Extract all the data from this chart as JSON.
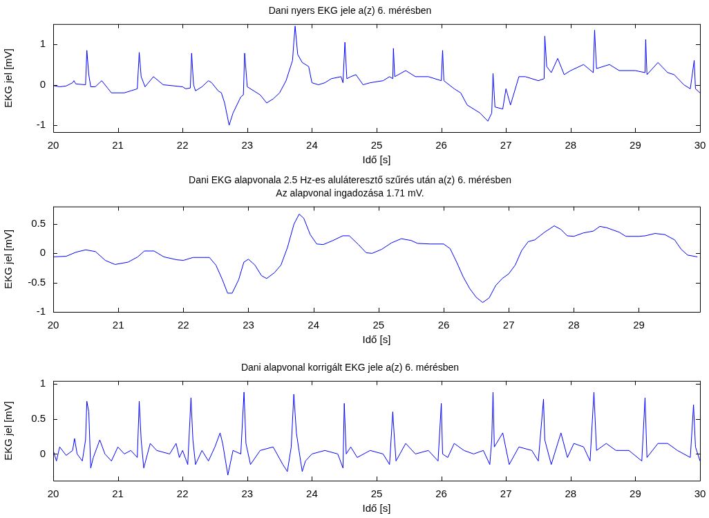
{
  "chart_data": [
    {
      "type": "line",
      "title": "Dani nyers EKG jele a(z) 6. mérésben",
      "xlabel": "Idő [s]",
      "ylabel": "EKG jel [mV]",
      "marker": "none",
      "xlim": [
        20,
        30
      ],
      "ylim": [
        -1.17,
        1.5
      ],
      "xticks": [
        20,
        21,
        22,
        23,
        24,
        25,
        26,
        27,
        28,
        29,
        30
      ],
      "yticks": [
        -1,
        0,
        1
      ],
      "series": [
        {
          "color": "#0000ff",
          "x": [
            20.0,
            20.1,
            20.2,
            20.3,
            20.32,
            20.35,
            20.5,
            20.52,
            20.55,
            20.58,
            20.65,
            20.75,
            20.85,
            20.9,
            21.1,
            21.2,
            21.3,
            21.33,
            21.36,
            21.42,
            21.55,
            21.7,
            22.0,
            22.05,
            22.12,
            22.14,
            22.17,
            22.2,
            22.3,
            22.4,
            22.45,
            22.55,
            22.6,
            22.65,
            22.72,
            22.78,
            22.9,
            22.94,
            22.96,
            23.0,
            23.2,
            23.3,
            23.4,
            23.5,
            23.6,
            23.65,
            23.7,
            23.72,
            23.74,
            23.78,
            23.85,
            23.95,
            24.0,
            24.1,
            24.2,
            24.3,
            24.45,
            24.48,
            24.51,
            24.54,
            24.6,
            24.68,
            24.79,
            24.9,
            25.1,
            25.2,
            25.25,
            25.26,
            25.28,
            25.45,
            25.6,
            25.8,
            26.0,
            26.02,
            26.04,
            26.2,
            26.3,
            26.4,
            26.6,
            26.72,
            26.78,
            26.8,
            26.83,
            26.95,
            27.0,
            27.07,
            27.2,
            27.3,
            27.5,
            27.59,
            27.6,
            27.63,
            27.7,
            27.8,
            27.9,
            28.0,
            28.2,
            28.35,
            28.37,
            28.4,
            28.6,
            28.75,
            29.0,
            29.15,
            29.16,
            29.18,
            29.35,
            29.5,
            29.6,
            29.75,
            29.85,
            29.91,
            29.93,
            30.0
          ],
          "values": [
            -0.02,
            -0.05,
            -0.03,
            0.05,
            0.1,
            0.02,
            0.0,
            0.85,
            0.25,
            -0.05,
            -0.05,
            0.1,
            -0.1,
            -0.2,
            -0.2,
            -0.15,
            -0.1,
            0.8,
            0.2,
            -0.05,
            0.2,
            0.0,
            -0.05,
            -0.1,
            -0.08,
            0.78,
            0.0,
            -0.15,
            -0.05,
            0.1,
            0.05,
            -0.15,
            -0.2,
            -0.45,
            -1.0,
            -0.7,
            -0.3,
            -0.25,
            0.78,
            -0.05,
            -0.25,
            -0.45,
            -0.35,
            -0.2,
            0.1,
            0.35,
            0.6,
            1.05,
            1.45,
            0.75,
            0.55,
            0.45,
            0.05,
            0.0,
            0.05,
            0.15,
            0.2,
            0.05,
            1.05,
            0.15,
            0.2,
            0.25,
            0.0,
            0.05,
            0.1,
            0.2,
            0.15,
            0.9,
            0.2,
            0.35,
            0.2,
            0.2,
            0.1,
            0.85,
            0.1,
            -0.1,
            -0.2,
            -0.5,
            -0.7,
            -0.9,
            -0.7,
            0.28,
            -0.55,
            -0.6,
            -0.1,
            -0.5,
            0.2,
            0.2,
            0.1,
            0.15,
            1.2,
            0.45,
            0.3,
            0.65,
            0.25,
            0.35,
            0.5,
            0.3,
            1.35,
            0.4,
            0.5,
            0.35,
            0.35,
            0.3,
            1.12,
            0.25,
            0.55,
            0.3,
            0.25,
            0.0,
            -0.1,
            0.6,
            -0.1,
            -0.2
          ]
        }
      ]
    },
    {
      "type": "line",
      "title": "Dani EKG alapvonala 2.5 Hz-es aluláteresztő szűrés után a(z) 6. mérésben",
      "subtitle": "Az alapvonal ingadozása 1.71 mV.",
      "xlabel": "Idő [s]",
      "ylabel": "EKG jel [mV]",
      "marker": "none",
      "xlim": [
        20,
        29.94
      ],
      "ylim": [
        -1,
        0.8
      ],
      "xticks": [
        20,
        21,
        22,
        23,
        24,
        25,
        26,
        27,
        28,
        29
      ],
      "yticks": [
        -1,
        -0.5,
        0,
        0.5
      ],
      "series": [
        {
          "color": "#0000ff",
          "x": [
            20.0,
            20.2,
            20.35,
            20.5,
            20.65,
            20.8,
            20.95,
            21.15,
            21.3,
            21.4,
            21.55,
            21.7,
            21.9,
            22.0,
            22.15,
            22.4,
            22.5,
            22.6,
            22.68,
            22.75,
            22.85,
            22.93,
            23.0,
            23.1,
            23.2,
            23.28,
            23.4,
            23.5,
            23.6,
            23.7,
            23.78,
            23.85,
            23.95,
            24.05,
            24.15,
            24.3,
            24.45,
            24.55,
            24.69,
            24.81,
            24.9,
            25.05,
            25.2,
            25.35,
            25.5,
            25.6,
            25.8,
            26.0,
            26.1,
            26.2,
            26.3,
            26.4,
            26.5,
            26.6,
            26.7,
            26.8,
            26.9,
            27.0,
            27.1,
            27.2,
            27.3,
            27.4,
            27.55,
            27.7,
            27.8,
            27.9,
            28.0,
            28.15,
            28.3,
            28.4,
            28.5,
            28.7,
            28.8,
            29.0,
            29.1,
            29.25,
            29.4,
            29.55,
            29.65,
            29.75,
            29.9
          ],
          "values": [
            -0.06,
            -0.05,
            0.02,
            0.06,
            0.03,
            -0.12,
            -0.19,
            -0.15,
            -0.06,
            0.04,
            0.04,
            -0.06,
            -0.11,
            -0.12,
            -0.07,
            -0.07,
            -0.2,
            -0.45,
            -0.68,
            -0.68,
            -0.45,
            -0.15,
            -0.1,
            -0.2,
            -0.38,
            -0.43,
            -0.33,
            -0.2,
            0.1,
            0.5,
            0.67,
            0.6,
            0.32,
            0.16,
            0.15,
            0.22,
            0.3,
            0.3,
            0.15,
            0.01,
            0.0,
            0.07,
            0.18,
            0.25,
            0.22,
            0.17,
            0.16,
            0.16,
            0.08,
            -0.15,
            -0.4,
            -0.6,
            -0.75,
            -0.84,
            -0.76,
            -0.55,
            -0.43,
            -0.35,
            -0.2,
            0.05,
            0.2,
            0.23,
            0.36,
            0.47,
            0.41,
            0.3,
            0.29,
            0.35,
            0.38,
            0.46,
            0.44,
            0.36,
            0.29,
            0.29,
            0.3,
            0.34,
            0.32,
            0.23,
            0.07,
            -0.03,
            -0.06
          ]
        }
      ]
    },
    {
      "type": "line",
      "title": "Dani alapvonal korrigált EKG jele a(z) 6. mérésben",
      "xlabel": "Idő [s]",
      "ylabel": "EKG jel [mV]",
      "marker": "none",
      "xlim": [
        20,
        30
      ],
      "ylim": [
        -0.38,
        1.04
      ],
      "xticks": [
        20,
        21,
        22,
        23,
        24,
        25,
        26,
        27,
        28,
        29,
        30
      ],
      "yticks": [
        0,
        0.5,
        1
      ],
      "series": [
        {
          "color": "#0000ff",
          "x": [
            20.0,
            20.05,
            20.1,
            20.2,
            20.3,
            20.33,
            20.37,
            20.45,
            20.5,
            20.52,
            20.55,
            20.58,
            20.62,
            20.72,
            20.8,
            20.9,
            21.0,
            21.1,
            21.2,
            21.3,
            21.33,
            21.36,
            21.4,
            21.5,
            21.6,
            21.8,
            21.9,
            21.95,
            22.0,
            22.08,
            22.13,
            22.16,
            22.2,
            22.3,
            22.4,
            22.5,
            22.58,
            22.62,
            22.7,
            22.78,
            22.9,
            22.95,
            22.98,
            23.05,
            23.2,
            23.4,
            23.55,
            23.62,
            23.68,
            23.72,
            23.76,
            23.8,
            23.85,
            23.9,
            24.0,
            24.2,
            24.4,
            24.48,
            24.5,
            24.53,
            24.6,
            24.7,
            24.9,
            25.1,
            25.2,
            25.25,
            25.27,
            25.3,
            25.45,
            25.6,
            25.8,
            25.95,
            26.0,
            26.02,
            26.1,
            26.2,
            26.35,
            26.5,
            26.65,
            26.75,
            26.78,
            26.8,
            26.82,
            26.95,
            27.05,
            27.2,
            27.4,
            27.5,
            27.58,
            27.6,
            27.7,
            27.85,
            27.95,
            28.05,
            28.2,
            28.3,
            28.36,
            28.4,
            28.55,
            28.7,
            28.9,
            29.1,
            29.15,
            29.18,
            29.35,
            29.5,
            29.65,
            29.85,
            29.9,
            29.93,
            30.0
          ],
          "values": [
            0.05,
            -0.1,
            0.1,
            -0.02,
            0.05,
            0.22,
            0.0,
            -0.1,
            0.2,
            0.75,
            0.6,
            -0.2,
            -0.05,
            0.2,
            0.0,
            -0.1,
            0.1,
            0.0,
            0.05,
            -0.05,
            0.75,
            0.2,
            -0.2,
            0.15,
            0.05,
            0.0,
            0.15,
            -0.05,
            0.05,
            -0.15,
            0.8,
            0.2,
            -0.15,
            0.05,
            -0.1,
            0.1,
            0.3,
            0.15,
            -0.3,
            0.05,
            0.0,
            0.88,
            0.15,
            -0.15,
            0.05,
            0.1,
            -0.15,
            -0.25,
            0.1,
            0.85,
            0.3,
            0.05,
            -0.25,
            -0.1,
            0.0,
            0.05,
            0.0,
            -0.2,
            0.72,
            0.0,
            0.1,
            -0.05,
            0.05,
            0.0,
            -0.15,
            0.6,
            0.3,
            -0.1,
            0.15,
            0.0,
            0.05,
            -0.1,
            0.72,
            0.0,
            -0.05,
            0.15,
            0.05,
            0.0,
            0.05,
            -0.15,
            0.2,
            0.88,
            0.1,
            0.3,
            -0.15,
            0.1,
            0.05,
            -0.1,
            0.78,
            0.2,
            -0.15,
            0.3,
            -0.05,
            0.15,
            0.1,
            -0.1,
            0.88,
            0.05,
            0.15,
            0.05,
            0.05,
            -0.1,
            0.8,
            -0.05,
            0.15,
            0.15,
            0.05,
            -0.05,
            0.7,
            0.1,
            -0.1
          ]
        }
      ]
    }
  ]
}
